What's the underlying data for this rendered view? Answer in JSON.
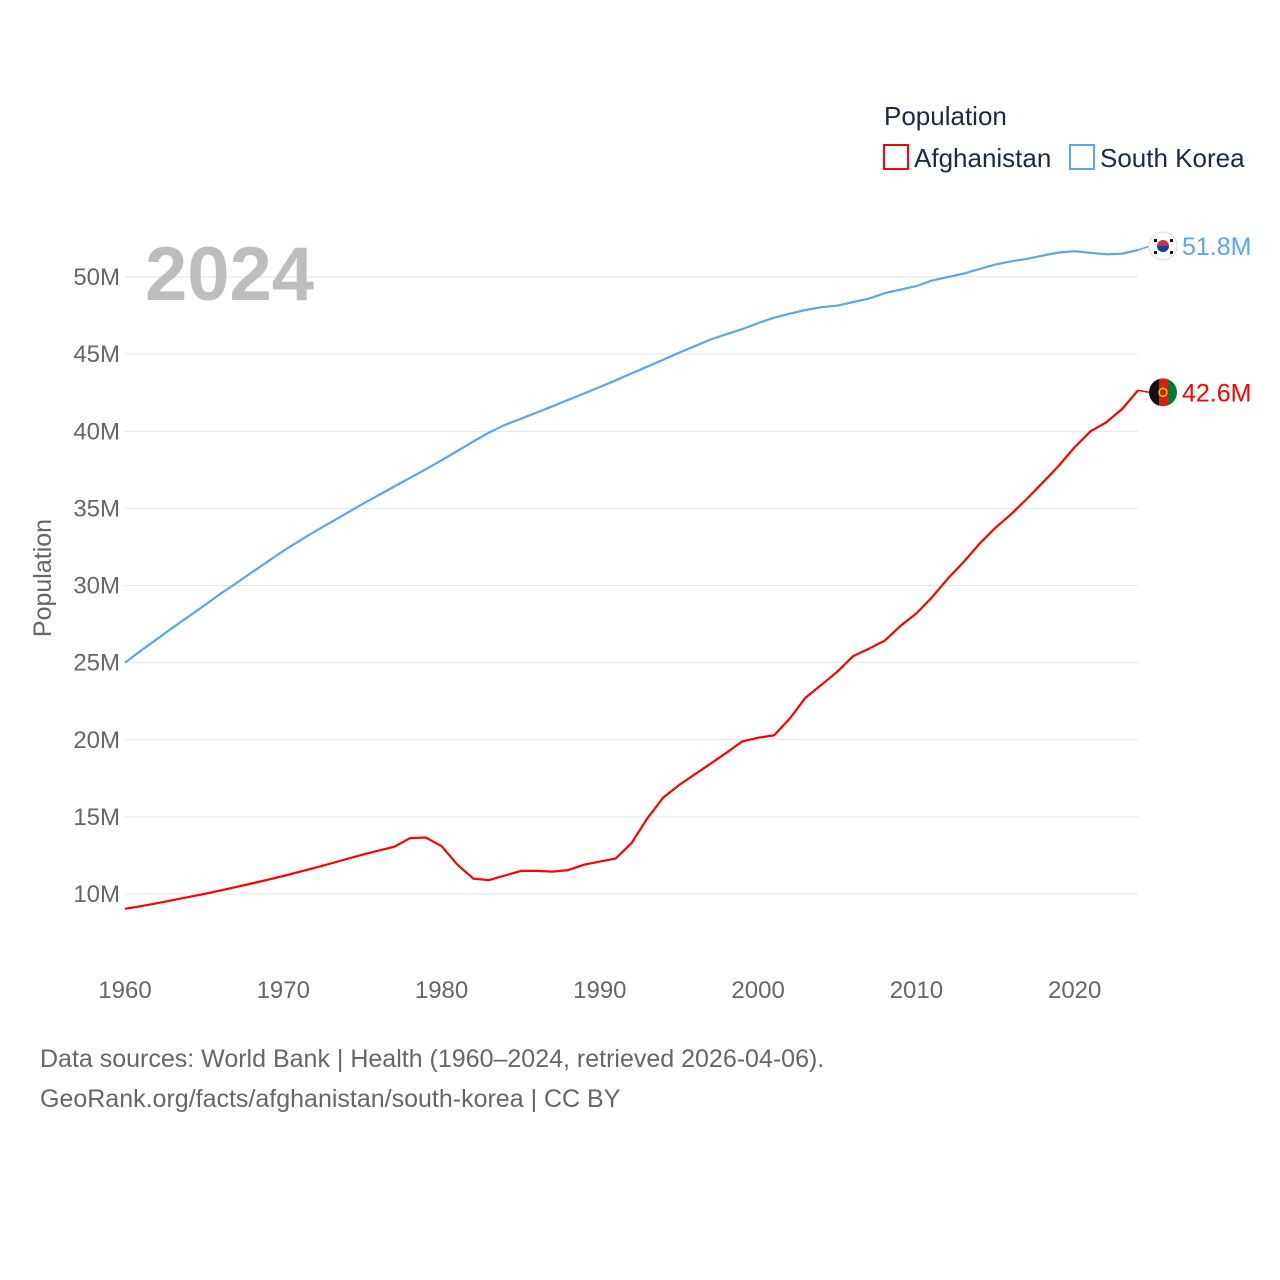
{
  "chart_data": {
    "type": "line",
    "title": "",
    "legend_title": "Population",
    "legend_placement": "top-right",
    "ylabel": "Population",
    "xlabel": "",
    "year_label": "2024",
    "xlim": [
      1960,
      2024
    ],
    "ylim": [
      8,
      52
    ],
    "x_ticks": [
      "1960",
      "1970",
      "1980",
      "1990",
      "2000",
      "2010",
      "2020"
    ],
    "y_ticks": [
      {
        "v": 10,
        "label": "10M"
      },
      {
        "v": 15,
        "label": "15M"
      },
      {
        "v": 20,
        "label": "20M"
      },
      {
        "v": 25,
        "label": "25M"
      },
      {
        "v": 30,
        "label": "30M"
      },
      {
        "v": 35,
        "label": "35M"
      },
      {
        "v": 40,
        "label": "40M"
      },
      {
        "v": 45,
        "label": "45M"
      },
      {
        "v": 50,
        "label": "50M"
      }
    ],
    "x_start": 1960,
    "series": [
      {
        "name": "Afghanistan",
        "color": "#ff0000",
        "end_label": "42.6M",
        "flag": "afghanistan-flag",
        "values": [
          9.04,
          9.21,
          9.4,
          9.6,
          9.8,
          10.0,
          10.22,
          10.45,
          10.68,
          10.92,
          11.17,
          11.43,
          11.7,
          11.98,
          12.27,
          12.55,
          12.81,
          13.06,
          13.62,
          13.66,
          13.1,
          11.9,
          11.0,
          10.9,
          11.2,
          11.5,
          11.5,
          11.45,
          11.55,
          11.9,
          12.1,
          12.3,
          13.3,
          14.9,
          16.25,
          17.06,
          17.76,
          18.45,
          19.16,
          19.89,
          20.13,
          20.28,
          21.38,
          22.73,
          23.56,
          24.41,
          25.42,
          25.9,
          26.43,
          27.39,
          28.19,
          29.25,
          30.47,
          31.54,
          32.72,
          33.75,
          34.64,
          35.64,
          36.69,
          37.77,
          38.97,
          40.0,
          40.58,
          41.45,
          42.65
        ]
      },
      {
        "name": "South Korea",
        "color": "#5ba6ef",
        "end_label": "51.8M",
        "flag": "south-korea-flag",
        "values": [
          25.0,
          25.77,
          26.51,
          27.26,
          27.98,
          28.7,
          29.44,
          30.13,
          30.84,
          31.54,
          32.24,
          32.88,
          33.51,
          34.1,
          34.69,
          35.28,
          35.85,
          36.41,
          36.97,
          37.53,
          38.12,
          38.72,
          39.33,
          39.91,
          40.41,
          40.81,
          41.21,
          41.62,
          42.03,
          42.45,
          42.87,
          43.3,
          43.75,
          44.19,
          44.64,
          45.09,
          45.52,
          45.95,
          46.29,
          46.62,
          47.01,
          47.36,
          47.62,
          47.86,
          48.04,
          48.14,
          48.37,
          48.6,
          48.95,
          49.18,
          49.41,
          49.78,
          50.0,
          50.22,
          50.52,
          50.82,
          51.02,
          51.18,
          51.39,
          51.59,
          51.67,
          51.57,
          51.47,
          51.51,
          51.75
        ]
      }
    ]
  },
  "footer": {
    "line1": "Data sources: World Bank | Health (1960–2024, retrieved 2026-04-06).",
    "line2": "GeoRank.org/facts/afghanistan/south-korea | CC BY"
  }
}
